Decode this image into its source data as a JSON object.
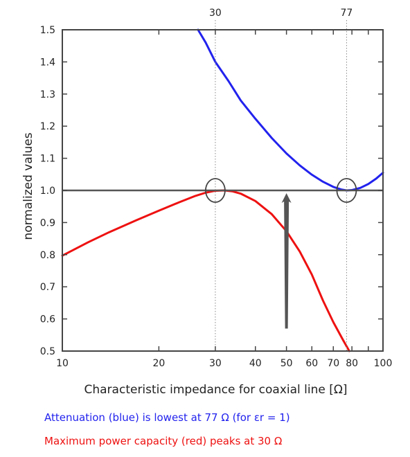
{
  "chart_data": {
    "type": "line",
    "xscale": "log",
    "xlim": [
      10,
      100
    ],
    "ylim": [
      0.5,
      1.5
    ],
    "xlabel": "Characteristic impedance for coaxial line [Ω]",
    "ylabel": "normalized values",
    "x_ticks": [
      {
        "value": 10,
        "label": "10"
      },
      {
        "value": 20,
        "label": "20"
      },
      {
        "value": 30,
        "label": "30"
      },
      {
        "value": 40,
        "label": "40"
      },
      {
        "value": 50,
        "label": "50"
      },
      {
        "value": 60,
        "label": "60"
      },
      {
        "value": 70,
        "label": "70"
      },
      {
        "value": 80,
        "label": "80"
      },
      {
        "value": 100,
        "label": "100"
      }
    ],
    "x_minor_ticks": [
      90
    ],
    "top_ticks": [
      {
        "value": 30,
        "label": "30"
      },
      {
        "value": 77,
        "label": "77"
      }
    ],
    "y_ticks": [
      {
        "value": 0.5,
        "label": "0.5"
      },
      {
        "value": 0.6,
        "label": "0.6"
      },
      {
        "value": 0.7,
        "label": "0.7"
      },
      {
        "value": 0.8,
        "label": "0.8"
      },
      {
        "value": 0.9,
        "label": "0.9"
      },
      {
        "value": 1.0,
        "label": "1.0"
      },
      {
        "value": 1.1,
        "label": "1.1"
      },
      {
        "value": 1.2,
        "label": "1.2"
      },
      {
        "value": 1.3,
        "label": "1.3"
      },
      {
        "value": 1.4,
        "label": "1.4"
      },
      {
        "value": 1.5,
        "label": "1.5"
      }
    ],
    "reference_lines": [
      {
        "orientation": "horizontal",
        "value": 1.0,
        "color": "#555555"
      },
      {
        "orientation": "vertical",
        "value": 30,
        "style": "dotted"
      },
      {
        "orientation": "vertical",
        "value": 77,
        "style": "dotted"
      }
    ],
    "circle_markers": [
      {
        "x": 30,
        "y": 1.0
      },
      {
        "x": 77,
        "y": 1.0
      }
    ],
    "arrow": {
      "x": 50,
      "from_y": 0.57,
      "to_y": 1.0,
      "color": "#555555"
    },
    "series": [
      {
        "color": "#2222ee",
        "x": [
          26.5,
          28,
          30,
          33,
          36,
          40,
          45,
          50,
          55,
          60,
          65,
          70,
          74,
          77,
          80,
          85,
          90,
          95,
          100
        ],
        "y": [
          1.5,
          1.46,
          1.4,
          1.34,
          1.28,
          1.223,
          1.163,
          1.115,
          1.078,
          1.049,
          1.027,
          1.011,
          1.003,
          1.0,
          1.001,
          1.008,
          1.02,
          1.036,
          1.055
        ]
      },
      {
        "color": "#ee1111",
        "x": [
          10,
          12,
          14,
          17,
          20,
          23,
          26,
          28,
          30,
          32,
          34,
          36,
          40,
          45,
          50,
          55,
          60,
          65,
          70,
          75,
          78.5
        ],
        "y": [
          0.797,
          0.838,
          0.87,
          0.907,
          0.937,
          0.962,
          0.983,
          0.993,
          0.999,
          1.0,
          0.997,
          0.99,
          0.967,
          0.926,
          0.873,
          0.81,
          0.738,
          0.657,
          0.59,
          0.535,
          0.5
        ]
      }
    ]
  },
  "captions": {
    "blue": "Attenuation (blue) is lowest at 77 Ω (for εr = 1)",
    "red": "Maximum power capacity (red) peaks at 30 Ω"
  },
  "colors": {
    "caption_blue": "#2222ee",
    "caption_red": "#ee1111",
    "frame": "#444444",
    "guide": "#888888"
  }
}
